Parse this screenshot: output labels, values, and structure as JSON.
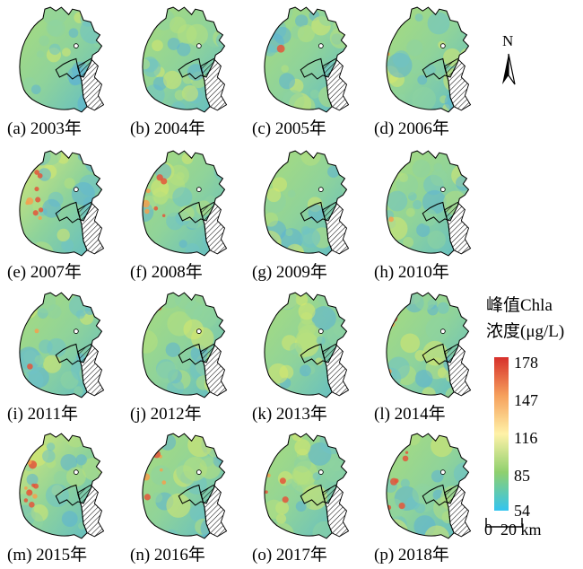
{
  "panels": [
    {
      "label": "(a) 2003年",
      "year": "2003",
      "hot": 0.0
    },
    {
      "label": "(b) 2004年",
      "year": "2004",
      "hot": 0.0
    },
    {
      "label": "(c) 2005年",
      "year": "2005",
      "hot": 0.05
    },
    {
      "label": "(d) 2006年",
      "year": "2006",
      "hot": 0.05
    },
    {
      "label": "(e) 2007年",
      "year": "2007",
      "hot": 0.85
    },
    {
      "label": "(f) 2008年",
      "year": "2008",
      "hot": 0.55
    },
    {
      "label": "(g) 2009年",
      "year": "2009",
      "hot": 0.0
    },
    {
      "label": "(h) 2010年",
      "year": "2010",
      "hot": 0.05
    },
    {
      "label": "(i) 2011年",
      "year": "2011",
      "hot": 0.2
    },
    {
      "label": "(j) 2012年",
      "year": "2012",
      "hot": 0.1
    },
    {
      "label": "(k) 2013年",
      "year": "2013",
      "hot": 0.05
    },
    {
      "label": "(l) 2014年",
      "year": "2014",
      "hot": 0.3
    },
    {
      "label": "(m) 2015年",
      "year": "2015",
      "hot": 0.8
    },
    {
      "label": "(n) 2016年",
      "year": "2016",
      "hot": 0.45
    },
    {
      "label": "(o) 2017年",
      "year": "2017",
      "hot": 0.3
    },
    {
      "label": "(p) 2018年",
      "year": "2018",
      "hot": 0.5
    }
  ],
  "north_label": "N",
  "legend": {
    "title_line1": "峰值Chla",
    "title_line2": "浓度(μg/L)",
    "ticks": [
      "178",
      "147",
      "116",
      "85",
      "54"
    ],
    "colors": {
      "top": "#d7302b",
      "upper": "#f6a05c",
      "mid": "#fff2a8",
      "lower": "#8fd06e",
      "bottom": "#33c4f0"
    }
  },
  "scale": {
    "label": "0  20 km"
  }
}
